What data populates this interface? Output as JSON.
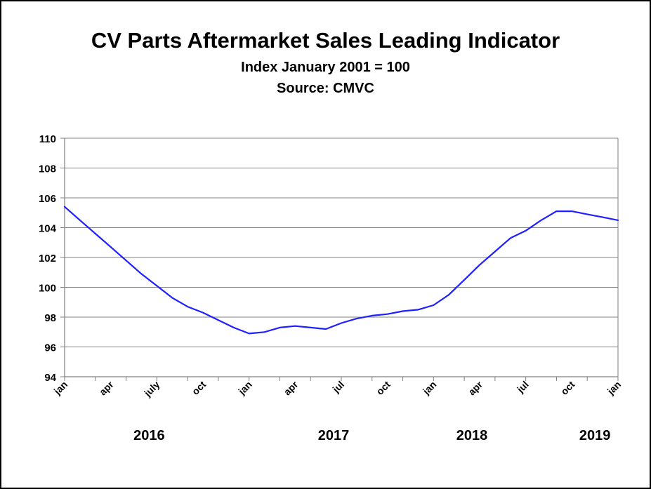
{
  "chart_data": {
    "type": "line",
    "title": "CV Parts Aftermarket Sales Leading Indicator",
    "subtitle": "Index January 2001 = 100",
    "source": "Source: CMVC",
    "xlabel": "",
    "ylabel": "",
    "ylim": [
      94,
      110
    ],
    "yticks": [
      94,
      96,
      98,
      100,
      102,
      104,
      106,
      108,
      110
    ],
    "grid": true,
    "x_tick_labels": [
      {
        "month_index": 0,
        "label": "jan"
      },
      {
        "month_index": 3,
        "label": "apr"
      },
      {
        "month_index": 6,
        "label": "july"
      },
      {
        "month_index": 9,
        "label": "oct"
      },
      {
        "month_index": 12,
        "label": "jan"
      },
      {
        "month_index": 15,
        "label": "apr"
      },
      {
        "month_index": 18,
        "label": "jul"
      },
      {
        "month_index": 21,
        "label": "oct"
      },
      {
        "month_index": 24,
        "label": "jan"
      },
      {
        "month_index": 27,
        "label": "apr"
      },
      {
        "month_index": 30,
        "label": "jul"
      },
      {
        "month_index": 33,
        "label": "oct"
      },
      {
        "month_index": 36,
        "label": "jan"
      }
    ],
    "year_labels": [
      {
        "month_index": 5.5,
        "label": "2016"
      },
      {
        "month_index": 17.5,
        "label": "2017"
      },
      {
        "month_index": 26.5,
        "label": "2018"
      },
      {
        "month_index": 34.5,
        "label": "2019"
      }
    ],
    "x_max_index": 36,
    "series": [
      {
        "name": "CV Parts Aftermarket Sales Leading Indicator",
        "color": "#1f1fff",
        "months": [
          "2016-01",
          "2016-02",
          "2016-03",
          "2016-04",
          "2016-05",
          "2016-06",
          "2016-07",
          "2016-08",
          "2016-09",
          "2016-10",
          "2016-11",
          "2016-12",
          "2017-01",
          "2017-02",
          "2017-03",
          "2017-04",
          "2017-05",
          "2017-06",
          "2017-07",
          "2017-08",
          "2017-09",
          "2017-10",
          "2017-11",
          "2017-12",
          "2018-01",
          "2018-02",
          "2018-03",
          "2018-04",
          "2018-05",
          "2018-06",
          "2018-07",
          "2018-08",
          "2018-09",
          "2018-10",
          "2018-11",
          "2018-12",
          "2019-01"
        ],
        "values": [
          105.4,
          104.5,
          103.6,
          102.7,
          101.8,
          100.9,
          100.1,
          99.3,
          98.7,
          98.3,
          97.8,
          97.3,
          96.9,
          97.0,
          97.3,
          97.4,
          97.3,
          97.2,
          97.6,
          97.9,
          98.1,
          98.2,
          98.4,
          98.5,
          98.8,
          99.5,
          100.5,
          101.5,
          102.4,
          103.3,
          103.8,
          104.5,
          105.1,
          105.1,
          104.9,
          104.7,
          104.5
        ]
      }
    ]
  }
}
